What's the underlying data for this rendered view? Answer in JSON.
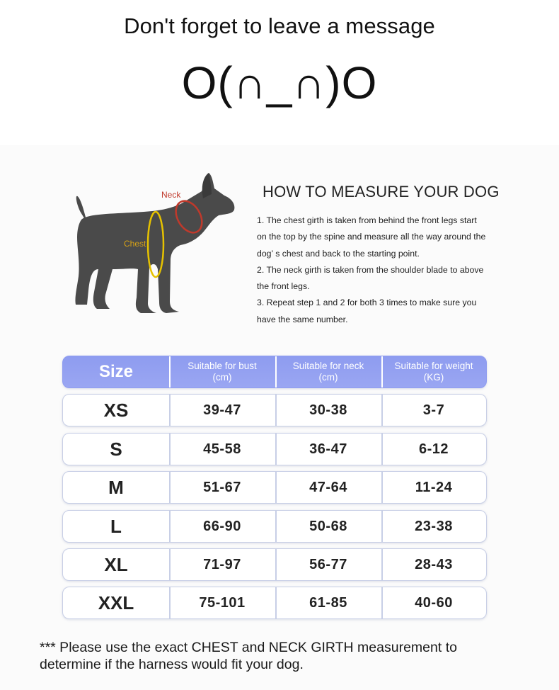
{
  "banner": {
    "headline": "Don't forget to leave a message",
    "emoticon": "O(∩_∩)O"
  },
  "diagram": {
    "neck_label": "Neck",
    "chest_label": "Chest",
    "neck_color": "#c0392b",
    "chest_color": "#e6c200",
    "dog_color": "#4a4a4a"
  },
  "instructions": {
    "title": "HOW TO MEASURE YOUR DOG",
    "lines": [
      "1. The chest girth is taken from behind the front legs start",
      "on the top by the spine and measure all the way around the",
      "dog’ s chest and back to the starting point.",
      "2. The neck girth is taken from the shoulder blade to above",
      "the front legs.",
      "3. Repeat step 1 and 2 for both 3 times to make sure you",
      "have the same number."
    ]
  },
  "size_table": {
    "header_color": "#8e9cf0",
    "headers": {
      "size": "Size",
      "bust_line1": "Suitable for bust",
      "bust_line2": "(cm)",
      "neck_line1": "Suitable for neck",
      "neck_line2": "(cm)",
      "weight_line1": "Suitable for weight",
      "weight_line2": "(KG)"
    },
    "rows": [
      {
        "size": "XS",
        "bust": "39-47",
        "neck": "30-38",
        "weight": "3-7"
      },
      {
        "size": "S",
        "bust": "45-58",
        "neck": "36-47",
        "weight": "6-12"
      },
      {
        "size": "M",
        "bust": "51-67",
        "neck": "47-64",
        "weight": "11-24"
      },
      {
        "size": "L",
        "bust": "66-90",
        "neck": "50-68",
        "weight": "23-38"
      },
      {
        "size": "XL",
        "bust": "71-97",
        "neck": "56-77",
        "weight": "28-43"
      },
      {
        "size": "XXL",
        "bust": "75-101",
        "neck": "61-85",
        "weight": "40-60"
      }
    ]
  },
  "footer_note": {
    "line1": "*** Please use the exact CHEST and NECK GIRTH measurement to",
    "line2": "determine if the harness would fit your dog."
  }
}
